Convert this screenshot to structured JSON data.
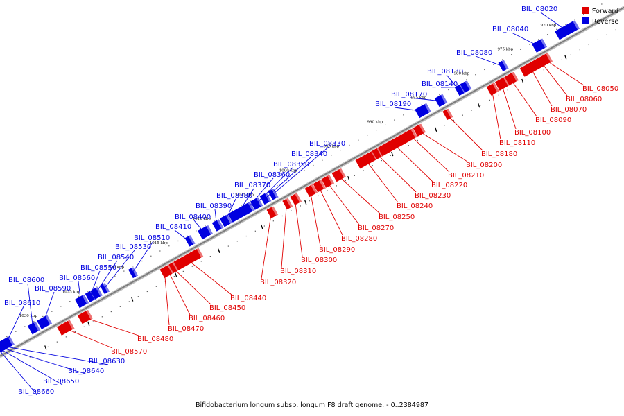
{
  "caption": "Bifidobacterium longum subsp. longum F8 draft genome. - 0..2384987",
  "legend": [
    {
      "label": "Forward",
      "color": "#e00000"
    },
    {
      "label": "Reverse",
      "color": "#0000e0"
    }
  ],
  "colors": {
    "forward": "#e00000",
    "reverse": "#0000e0",
    "backbone": "#7a7a7a"
  },
  "scale_ticks": [
    "970 kbp",
    "975 kbp",
    "980 kbp",
    "985 kbp",
    "990 kbp",
    "995 kbp",
    "1000 kbp",
    "1005 kbp",
    "1010 kbp",
    "1015 kbp",
    "1020 kbp",
    "1025 kbp",
    "1030 kbp"
  ],
  "reverse_genes": [
    "BIL_08020",
    "BIL_08040",
    "BIL_08080",
    "BIL_08130",
    "BIL_08140",
    "BIL_08170",
    "BIL_08190",
    "BIL_08330",
    "BIL_08340",
    "BIL_08350",
    "BIL_08360",
    "BIL_08370",
    "BIL_08380",
    "BIL_08390",
    "BIL_08400",
    "BIL_08410",
    "BIL_08510",
    "BIL_08530",
    "BIL_08540",
    "BIL_08550",
    "BIL_08560",
    "BIL_08590",
    "BIL_08600",
    "BIL_08610",
    "BIL_08630",
    "BIL_08640",
    "BIL_08650",
    "BIL_08660"
  ],
  "forward_genes": [
    "BIL_08050",
    "BIL_08060",
    "BIL_08070",
    "BIL_08090",
    "BIL_08100",
    "BIL_08110",
    "BIL_08180",
    "BIL_08200",
    "BIL_08210",
    "BIL_08220",
    "BIL_08230",
    "BIL_08240",
    "BIL_08250",
    "BIL_08270",
    "BIL_08280",
    "BIL_08290",
    "BIL_08300",
    "BIL_08310",
    "BIL_08320",
    "BIL_08440",
    "BIL_08450",
    "BIL_08460",
    "BIL_08470",
    "BIL_08480",
    "BIL_08570"
  ]
}
